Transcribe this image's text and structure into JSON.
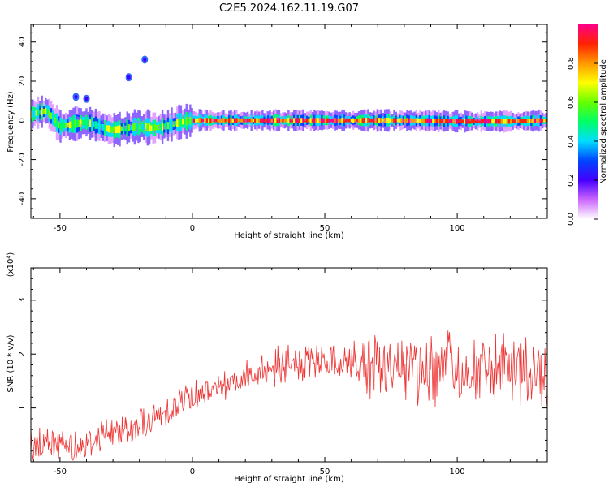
{
  "title": "C2E5.2024.162.11.19.G07",
  "chart_data": [
    {
      "type": "heatmap",
      "xlabel": "Height of straight line (km)",
      "ylabel": "Frequency (Hz)",
      "xlim": [
        -61,
        134
      ],
      "ylim": [
        -50,
        49
      ],
      "xticks": [
        -50,
        0,
        50,
        100
      ],
      "yticks": [
        -40,
        -20,
        0,
        20,
        40
      ],
      "colorbar": {
        "label": "Normalized spectral amplitude",
        "range": [
          0,
          1
        ],
        "ticks": [
          "0.0",
          "0.2",
          "0.4",
          "0.6",
          "0.8"
        ],
        "colors": [
          "#ffffff",
          "#cc66ff",
          "#4400ff",
          "#0044ff",
          "#00ddff",
          "#00ff66",
          "#66ff00",
          "#ffff00",
          "#ff9900",
          "#ff2200",
          "#ff0088"
        ]
      },
      "ridge": {
        "x": [
          -61,
          -55,
          -50,
          -45,
          -40,
          -35,
          -30,
          -25,
          -20,
          -15,
          -10,
          -5,
          0,
          10,
          20,
          40,
          60,
          80,
          100,
          120,
          134
        ],
        "frequency": [
          3,
          5,
          -3,
          -2,
          -1,
          -3,
          -5,
          -4,
          -3,
          -4,
          -3,
          -1,
          0,
          0,
          0,
          0,
          0,
          0,
          -0.5,
          -0.5,
          0
        ]
      },
      "scatter_points": [
        {
          "x": -40,
          "frequency": 11
        },
        {
          "x": -44,
          "frequency": 12
        },
        {
          "x": -24,
          "frequency": 22
        },
        {
          "x": -18,
          "frequency": 31
        }
      ]
    },
    {
      "type": "line",
      "xlabel": "Height of straight line (km)",
      "ylabel": "SNR (10 * v/v)",
      "y_multiplier": "(x10⁴)",
      "xlim": [
        -61,
        134
      ],
      "ylim": [
        0,
        3.6
      ],
      "xticks": [
        -50,
        0,
        50,
        100
      ],
      "yticks": [
        1,
        2,
        3
      ],
      "color": "#ee3333",
      "series": [
        {
          "x": [
            -61,
            -50,
            -40,
            -35,
            -30,
            -20,
            -15,
            -10,
            -5,
            0,
            10,
            20,
            30,
            40,
            50,
            60,
            70,
            80,
            90,
            100,
            110,
            120,
            134
          ],
          "values": [
            0.3,
            0.35,
            0.3,
            0.5,
            0.55,
            0.7,
            0.75,
            0.95,
            1.1,
            1.25,
            1.4,
            1.6,
            1.75,
            1.8,
            1.85,
            1.85,
            1.75,
            1.8,
            1.75,
            1.7,
            1.7,
            1.65,
            1.6
          ]
        }
      ]
    }
  ]
}
